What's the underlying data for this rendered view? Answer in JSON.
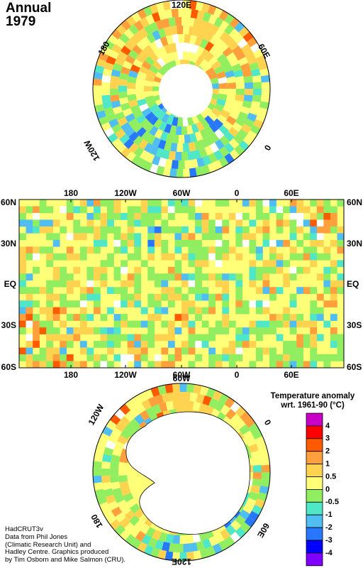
{
  "header": {
    "title_line1": "Annual",
    "title_line2": "1979"
  },
  "north_polar": {
    "labels": {
      "top": "120E",
      "upper_left": "180",
      "upper_right": "60E",
      "lower_left": "120W",
      "lower_right": "0"
    }
  },
  "world_map": {
    "top_lon_labels": [
      "180",
      "120W",
      "60W",
      "0",
      "60E"
    ],
    "bottom_lon_labels": [
      "180",
      "120W",
      "60W",
      "0",
      "60E"
    ],
    "left_lat_labels": [
      "60N",
      "30N",
      "EQ",
      "30S",
      "60S"
    ],
    "right_lat_labels": [
      "60N",
      "30N",
      "EQ",
      "30S",
      "60S"
    ]
  },
  "south_polar": {
    "labels": {
      "top": "60W",
      "upper_left": "120W",
      "upper_right": "0",
      "lower_left": "180",
      "lower_right": "60E",
      "bottom": "120E"
    }
  },
  "legend": {
    "title_line1": "Temperature anomaly",
    "title_line2": "wrt. 1961-90  (°C)",
    "bins": [
      {
        "label": "4",
        "color": "#c800c8"
      },
      {
        "label": "3",
        "color": "#ff0000"
      },
      {
        "label": "2",
        "color": "#ff5a00"
      },
      {
        "label": "1",
        "color": "#ffa03c"
      },
      {
        "label": "0.5",
        "color": "#ffd250"
      },
      {
        "label": "0",
        "color": "#ffff78"
      },
      {
        "label": "-0.5",
        "color": "#90ee60"
      },
      {
        "label": "-1",
        "color": "#50e6c8"
      },
      {
        "label": "-2",
        "color": "#50bef0"
      },
      {
        "label": "-3",
        "color": "#2878ff"
      },
      {
        "label": "-4",
        "color": "#0000ff"
      },
      {
        "label": "",
        "color": "#8000ff"
      }
    ]
  },
  "credits": {
    "line1": "HadCRUT3v",
    "line2": "Data from Phil Jones",
    "line3": "(Climatic Research Unit) and",
    "line4": "Hadley Centre.  Graphics produced",
    "line5": "by Tim Osborn and Mike Salmon (CRU)."
  }
}
